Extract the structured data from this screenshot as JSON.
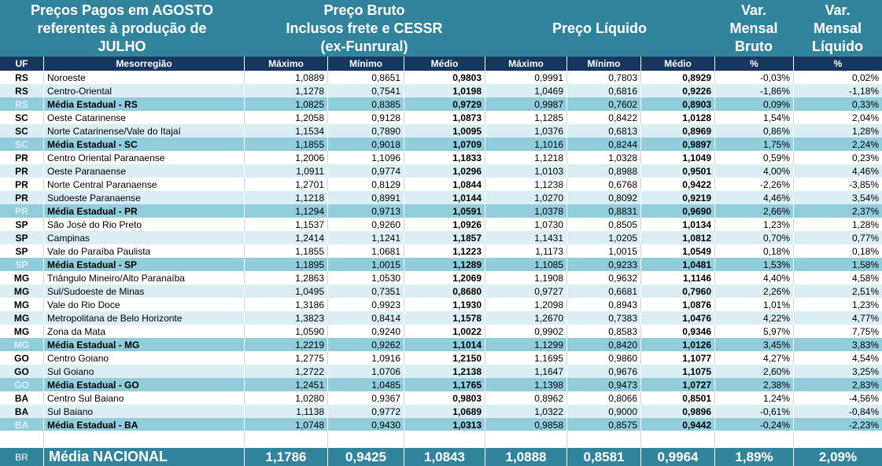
{
  "header": {
    "title": "Preços Pagos em AGOSTO\nreferentes à produção de\nJULHO",
    "bruto": "Preço Bruto\nInclusos frete e CESSR\n(ex-Funrural)",
    "liquido": "Preço Líquido",
    "var_bruto": "Var.\nMensal\nBruto",
    "var_liquido": "Var.\nMensal\nLíquido"
  },
  "columns": [
    "UF",
    "Mesorregião",
    "Máximo",
    "Mínimo",
    "Médio",
    "Máximo",
    "Mínimo",
    "Médio",
    "%",
    "%"
  ],
  "rows": [
    {
      "type": "region",
      "uf": "RS",
      "meso": "Noroeste",
      "bmax": "1,0889",
      "bmin": "0,8651",
      "bmed": "0,9803",
      "lmax": "0,9991",
      "lmin": "0,7803",
      "lmed": "0,8929",
      "vb": "-0,03%",
      "vl": "0,02%"
    },
    {
      "type": "region",
      "uf": "RS",
      "meso": "Centro-Oriental",
      "bmax": "1,1278",
      "bmin": "0,7541",
      "bmed": "1,0198",
      "lmax": "1,0469",
      "lmin": "0,6816",
      "lmed": "0,9226",
      "vb": "-1,86%",
      "vl": "-1,18%"
    },
    {
      "type": "avg",
      "uf": "RS",
      "meso": "Média Estadual - RS",
      "bmax": "1,0825",
      "bmin": "0,8385",
      "bmed": "0,9729",
      "lmax": "0,9987",
      "lmin": "0,7602",
      "lmed": "0,8903",
      "vb": "0,09%",
      "vl": "0,33%"
    },
    {
      "type": "region",
      "uf": "SC",
      "meso": "Oeste Catarinense",
      "bmax": "1,2058",
      "bmin": "0,9128",
      "bmed": "1,0873",
      "lmax": "1,1285",
      "lmin": "0,8422",
      "lmed": "1,0128",
      "vb": "1,54%",
      "vl": "2,04%"
    },
    {
      "type": "region",
      "uf": "SC",
      "meso": "Norte Catarinense/Vale do Itajaí",
      "bmax": "1,1534",
      "bmin": "0,7890",
      "bmed": "1,0095",
      "lmax": "1,0376",
      "lmin": "0,6813",
      "lmed": "0,8969",
      "vb": "0,86%",
      "vl": "1,28%"
    },
    {
      "type": "avg",
      "uf": "SC",
      "meso": "Média Estadual - SC",
      "bmax": "1,1855",
      "bmin": "0,9018",
      "bmed": "1,0709",
      "lmax": "1,1016",
      "lmin": "0,8244",
      "lmed": "0,9897",
      "vb": "1,75%",
      "vl": "2,24%"
    },
    {
      "type": "region",
      "uf": "PR",
      "meso": "Centro Oriental Paranaense",
      "bmax": "1,2006",
      "bmin": "1,1096",
      "bmed": "1,1833",
      "lmax": "1,1218",
      "lmin": "1,0328",
      "lmed": "1,1049",
      "vb": "0,59%",
      "vl": "0,23%"
    },
    {
      "type": "region",
      "uf": "PR",
      "meso": "Oeste Paranaense",
      "bmax": "1,0911",
      "bmin": "0,9774",
      "bmed": "1,0296",
      "lmax": "1,0103",
      "lmin": "0,8988",
      "lmed": "0,9501",
      "vb": "4,00%",
      "vl": "4,46%"
    },
    {
      "type": "region",
      "uf": "PR",
      "meso": "Norte Central Paranaense",
      "bmax": "1,2701",
      "bmin": "0,8129",
      "bmed": "1,0844",
      "lmax": "1,1238",
      "lmin": "0,6768",
      "lmed": "0,9422",
      "vb": "-2,26%",
      "vl": "-3,85%"
    },
    {
      "type": "region",
      "uf": "PR",
      "meso": "Sudoeste Paranaense",
      "bmax": "1,1218",
      "bmin": "0,8991",
      "bmed": "1,0144",
      "lmax": "1,0270",
      "lmin": "0,8092",
      "lmed": "0,9219",
      "vb": "4,46%",
      "vl": "3,54%"
    },
    {
      "type": "avg",
      "uf": "PR",
      "meso": "Média Estadual - PR",
      "bmax": "1,1294",
      "bmin": "0,9713",
      "bmed": "1,0591",
      "lmax": "1,0378",
      "lmin": "0,8831",
      "lmed": "0,9690",
      "vb": "2,66%",
      "vl": "2,37%"
    },
    {
      "type": "region",
      "uf": "SP",
      "meso": "São José do Rio Preto",
      "bmax": "1,1537",
      "bmin": "0,9260",
      "bmed": "1,0926",
      "lmax": "1,0730",
      "lmin": "0,8505",
      "lmed": "1,0134",
      "vb": "1,23%",
      "vl": "1,28%"
    },
    {
      "type": "region",
      "uf": "SP",
      "meso": "Campinas",
      "bmax": "1,2414",
      "bmin": "1,1241",
      "bmed": "1,1857",
      "lmax": "1,1431",
      "lmin": "1,0205",
      "lmed": "1,0812",
      "vb": "0,70%",
      "vl": "0,77%"
    },
    {
      "type": "region",
      "uf": "SP",
      "meso": "Vale do Paraíba Paulista",
      "bmax": "1,1855",
      "bmin": "1,0681",
      "bmed": "1,1223",
      "lmax": "1,1173",
      "lmin": "1,0015",
      "lmed": "1,0549",
      "vb": "0,18%",
      "vl": "0,18%"
    },
    {
      "type": "avg",
      "uf": "SP",
      "meso": "Média Estadual - SP",
      "bmax": "1,1895",
      "bmin": "1,0015",
      "bmed": "1,1289",
      "lmax": "1,1085",
      "lmin": "0,9233",
      "lmed": "1,0481",
      "vb": "1,53%",
      "vl": "1,58%"
    },
    {
      "type": "region",
      "uf": "MG",
      "meso": "Triângulo Mineiro/Alto Paranaíba",
      "bmax": "1,2863",
      "bmin": "1,0530",
      "bmed": "1,2069",
      "lmax": "1,1908",
      "lmin": "0,9632",
      "lmed": "1,1146",
      "vb": "4,40%",
      "vl": "4,58%"
    },
    {
      "type": "region",
      "uf": "MG",
      "meso": "Sul/Sudoeste de Minas",
      "bmax": "1,0495",
      "bmin": "0,7351",
      "bmed": "0,8680",
      "lmax": "0,9727",
      "lmin": "0,6681",
      "lmed": "0,7960",
      "vb": "2,26%",
      "vl": "2,51%"
    },
    {
      "type": "region",
      "uf": "MG",
      "meso": "Vale do Rio Doce",
      "bmax": "1,3186",
      "bmin": "0,9923",
      "bmed": "1,1930",
      "lmax": "1,2098",
      "lmin": "0,8943",
      "lmed": "1,0876",
      "vb": "1,01%",
      "vl": "1,23%"
    },
    {
      "type": "region",
      "uf": "MG",
      "meso": "Metropolitana de Belo Horizonte",
      "bmax": "1,3823",
      "bmin": "0,8414",
      "bmed": "1,1578",
      "lmax": "1,2670",
      "lmin": "0,7383",
      "lmed": "1,0476",
      "vb": "4,22%",
      "vl": "4,77%"
    },
    {
      "type": "region",
      "uf": "MG",
      "meso": "Zona da Mata",
      "bmax": "1,0590",
      "bmin": "0,9240",
      "bmed": "1,0022",
      "lmax": "0,9902",
      "lmin": "0,8583",
      "lmed": "0,9346",
      "vb": "5,97%",
      "vl": "7,75%"
    },
    {
      "type": "avg",
      "uf": "MG",
      "meso": "Média Estadual - MG",
      "bmax": "1,2219",
      "bmin": "0,9262",
      "bmed": "1,1014",
      "lmax": "1,1299",
      "lmin": "0,8420",
      "lmed": "1,0126",
      "vb": "3,45%",
      "vl": "3,83%"
    },
    {
      "type": "region",
      "uf": "GO",
      "meso": "Centro Goiano",
      "bmax": "1,2775",
      "bmin": "1,0916",
      "bmed": "1,2150",
      "lmax": "1,1695",
      "lmin": "0,9860",
      "lmed": "1,1077",
      "vb": "4,27%",
      "vl": "4,54%"
    },
    {
      "type": "region",
      "uf": "GO",
      "meso": "Sul Goiano",
      "bmax": "1,2722",
      "bmin": "1,0706",
      "bmed": "1,2138",
      "lmax": "1,1647",
      "lmin": "0,9676",
      "lmed": "1,1075",
      "vb": "2,60%",
      "vl": "3,25%"
    },
    {
      "type": "avg",
      "uf": "GO",
      "meso": "Média Estadual - GO",
      "bmax": "1,2451",
      "bmin": "1,0485",
      "bmed": "1,1765",
      "lmax": "1,1398",
      "lmin": "0,9473",
      "lmed": "1,0727",
      "vb": "2,38%",
      "vl": "2,83%"
    },
    {
      "type": "region",
      "uf": "BA",
      "meso": "Centro Sul Baiano",
      "bmax": "1,0280",
      "bmin": "0,9367",
      "bmed": "0,9803",
      "lmax": "0,8962",
      "lmin": "0,8066",
      "lmed": "0,8501",
      "vb": "1,24%",
      "vl": "-4,56%"
    },
    {
      "type": "region",
      "uf": "BA",
      "meso": "Sul Baiano",
      "bmax": "1,1138",
      "bmin": "0,9772",
      "bmed": "1,0689",
      "lmax": "1,0322",
      "lmin": "0,9000",
      "lmed": "0,9896",
      "vb": "-0,61%",
      "vl": "-0,84%"
    },
    {
      "type": "avg",
      "uf": "BA",
      "meso": "Média Estadual - BA",
      "bmax": "1,0748",
      "bmin": "0,9430",
      "bmed": "1,0313",
      "lmax": "0,9858",
      "lmin": "0,8575",
      "lmed": "0,9442",
      "vb": "-0,24%",
      "vl": "-2,23%"
    }
  ],
  "national": {
    "uf": "BR",
    "meso": "Média NACIONAL",
    "bmax": "1,1786",
    "bmin": "0,9425",
    "bmed": "1,0843",
    "lmax": "1,0888",
    "lmin": "0,8581",
    "lmed": "0,9964",
    "vb": "1,89%",
    "vl": "2,09%"
  },
  "colors": {
    "header": "#31849b",
    "subheader": "#17375e",
    "row_even": "#dbeef3",
    "row_average": "#92cddc"
  }
}
